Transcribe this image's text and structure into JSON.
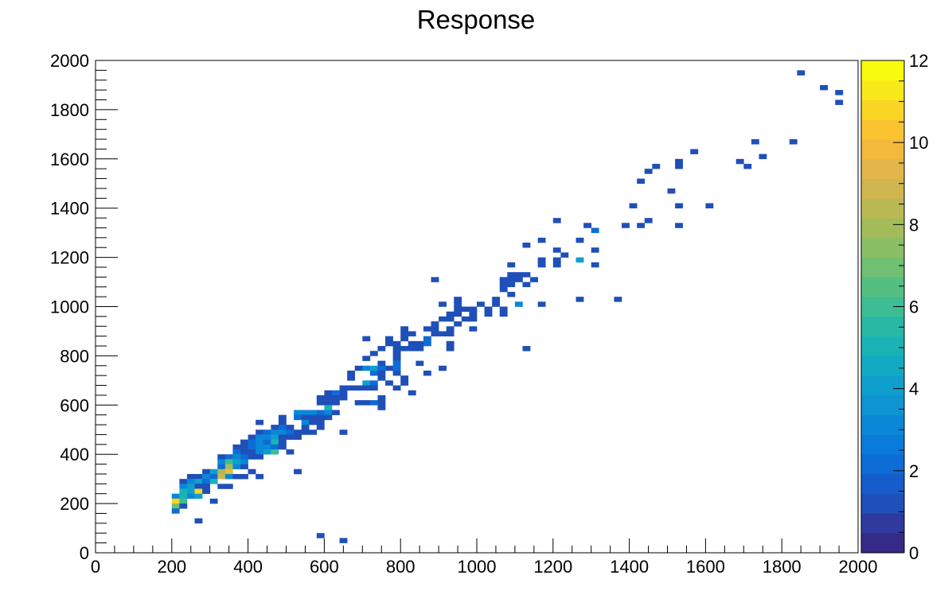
{
  "chart_data": {
    "type": "heatmap",
    "title": "Response",
    "xlabel": "",
    "ylabel": "",
    "xlim": [
      0,
      2000
    ],
    "ylim": [
      0,
      2000
    ],
    "zlim": [
      0,
      12
    ],
    "bin_width": 20,
    "x_ticks": [
      0,
      200,
      400,
      600,
      800,
      1000,
      1200,
      1400,
      1600,
      1800,
      2000
    ],
    "y_ticks": [
      0,
      200,
      400,
      600,
      800,
      1000,
      1200,
      1400,
      1600,
      1800,
      2000
    ],
    "z_ticks": [
      0,
      2,
      4,
      6,
      8,
      10,
      12
    ],
    "x_tick_labels": [
      "0",
      "200",
      "400",
      "600",
      "800",
      "1000",
      "1200",
      "1400",
      "1600",
      "1800",
      "2000"
    ],
    "y_tick_labels": [
      "0",
      "200",
      "400",
      "600",
      "800",
      "1000",
      "1200",
      "1400",
      "1600",
      "1800",
      "2000"
    ],
    "z_tick_labels": [
      "0",
      "2",
      "4",
      "6",
      "8",
      "10",
      "12"
    ],
    "palette": [
      "#352a87",
      "#2e3a9e",
      "#1f4fb8",
      "#165ccb",
      "#0e6cd6",
      "#0a7bdb",
      "#0b87d8",
      "#0e93d3",
      "#0f9fcc",
      "#12aac2",
      "#1ab3b4",
      "#27b9a4",
      "#3dbd93",
      "#55bf82",
      "#70bf72",
      "#8abe64",
      "#a3bc59",
      "#bbb954",
      "#cfb650",
      "#e2b649",
      "#f2b93d",
      "#fbc330",
      "#fad624",
      "#f8e91a",
      "#f9fb0e"
    ],
    "cells": [
      [
        1850,
        1950,
        1
      ],
      [
        1910,
        1890,
        1
      ],
      [
        1950,
        1870,
        1
      ],
      [
        1950,
        1830,
        1
      ],
      [
        1730,
        1670,
        1
      ],
      [
        1830,
        1670,
        1
      ],
      [
        1570,
        1630,
        1
      ],
      [
        1750,
        1610,
        1
      ],
      [
        1530,
        1590,
        1
      ],
      [
        1690,
        1590,
        1
      ],
      [
        1470,
        1570,
        1
      ],
      [
        1530,
        1570,
        1
      ],
      [
        1710,
        1570,
        1
      ],
      [
        1450,
        1550,
        1
      ],
      [
        1430,
        1510,
        1
      ],
      [
        1510,
        1470,
        1
      ],
      [
        1410,
        1410,
        1
      ],
      [
        1530,
        1410,
        1
      ],
      [
        1610,
        1410,
        1
      ],
      [
        1210,
        1350,
        1
      ],
      [
        1450,
        1350,
        1
      ],
      [
        1290,
        1330,
        1
      ],
      [
        1390,
        1330,
        1
      ],
      [
        1430,
        1330,
        1
      ],
      [
        1530,
        1330,
        1
      ],
      [
        1310,
        1310,
        2
      ],
      [
        1170,
        1270,
        1
      ],
      [
        1270,
        1270,
        1
      ],
      [
        1130,
        1250,
        1
      ],
      [
        1210,
        1230,
        1
      ],
      [
        1310,
        1230,
        1
      ],
      [
        1230,
        1210,
        1
      ],
      [
        1170,
        1190,
        1
      ],
      [
        1210,
        1190,
        1
      ],
      [
        1270,
        1190,
        4
      ],
      [
        1090,
        1170,
        1
      ],
      [
        1170,
        1170,
        1
      ],
      [
        1210,
        1170,
        1
      ],
      [
        1310,
        1170,
        1
      ],
      [
        1090,
        1130,
        1
      ],
      [
        1110,
        1130,
        1
      ],
      [
        1130,
        1130,
        1
      ],
      [
        890,
        1110,
        1
      ],
      [
        1070,
        1110,
        1
      ],
      [
        1090,
        1110,
        1
      ],
      [
        1110,
        1110,
        1
      ],
      [
        1150,
        1110,
        1
      ],
      [
        1070,
        1090,
        1
      ],
      [
        1090,
        1090,
        1
      ],
      [
        1130,
        1090,
        1
      ],
      [
        1070,
        1070,
        1
      ],
      [
        1090,
        1050,
        1
      ],
      [
        950,
        1030,
        1
      ],
      [
        1050,
        1030,
        1
      ],
      [
        1270,
        1030,
        1
      ],
      [
        1370,
        1030,
        1
      ],
      [
        910,
        1010,
        1
      ],
      [
        950,
        1010,
        1
      ],
      [
        1010,
        1010,
        1
      ],
      [
        1050,
        1010,
        1
      ],
      [
        1110,
        1010,
        3
      ],
      [
        1170,
        1010,
        1
      ],
      [
        950,
        990,
        1
      ],
      [
        970,
        990,
        1
      ],
      [
        990,
        990,
        1
      ],
      [
        1030,
        990,
        1
      ],
      [
        1070,
        990,
        1
      ],
      [
        930,
        970,
        1
      ],
      [
        950,
        970,
        1
      ],
      [
        990,
        970,
        1
      ],
      [
        1030,
        970,
        1
      ],
      [
        1070,
        970,
        1
      ],
      [
        910,
        950,
        1
      ],
      [
        930,
        950,
        1
      ],
      [
        970,
        950,
        1
      ],
      [
        990,
        950,
        1
      ],
      [
        890,
        930,
        1
      ],
      [
        950,
        930,
        1
      ],
      [
        810,
        910,
        1
      ],
      [
        870,
        910,
        1
      ],
      [
        890,
        910,
        1
      ],
      [
        930,
        910,
        1
      ],
      [
        990,
        910,
        1
      ],
      [
        810,
        890,
        1
      ],
      [
        830,
        890,
        1
      ],
      [
        890,
        890,
        1
      ],
      [
        910,
        890,
        1
      ],
      [
        930,
        890,
        1
      ],
      [
        710,
        870,
        1
      ],
      [
        770,
        870,
        1
      ],
      [
        810,
        870,
        1
      ],
      [
        870,
        870,
        2
      ],
      [
        770,
        850,
        1
      ],
      [
        790,
        850,
        1
      ],
      [
        830,
        850,
        1
      ],
      [
        850,
        850,
        1
      ],
      [
        870,
        850,
        2
      ],
      [
        930,
        850,
        1
      ],
      [
        750,
        830,
        1
      ],
      [
        790,
        830,
        1
      ],
      [
        810,
        830,
        1
      ],
      [
        830,
        830,
        1
      ],
      [
        850,
        830,
        1
      ],
      [
        930,
        830,
        1
      ],
      [
        1130,
        830,
        1
      ],
      [
        730,
        810,
        1
      ],
      [
        790,
        810,
        1
      ],
      [
        710,
        790,
        1
      ],
      [
        790,
        790,
        1
      ],
      [
        750,
        770,
        1
      ],
      [
        790,
        770,
        2
      ],
      [
        850,
        770,
        1
      ],
      [
        690,
        750,
        1
      ],
      [
        710,
        750,
        3
      ],
      [
        730,
        750,
        4
      ],
      [
        750,
        750,
        2
      ],
      [
        770,
        750,
        1
      ],
      [
        790,
        750,
        2
      ],
      [
        910,
        750,
        1
      ],
      [
        670,
        730,
        1
      ],
      [
        730,
        730,
        2
      ],
      [
        750,
        730,
        1
      ],
      [
        790,
        730,
        1
      ],
      [
        870,
        730,
        1
      ],
      [
        670,
        710,
        1
      ],
      [
        750,
        710,
        1
      ],
      [
        810,
        710,
        1
      ],
      [
        710,
        690,
        4
      ],
      [
        730,
        690,
        2
      ],
      [
        770,
        690,
        1
      ],
      [
        810,
        690,
        1
      ],
      [
        650,
        670,
        1
      ],
      [
        670,
        670,
        1
      ],
      [
        690,
        670,
        1
      ],
      [
        710,
        670,
        1
      ],
      [
        730,
        670,
        1
      ],
      [
        790,
        670,
        1
      ],
      [
        610,
        650,
        1
      ],
      [
        630,
        650,
        2
      ],
      [
        650,
        650,
        1
      ],
      [
        830,
        650,
        1
      ],
      [
        590,
        630,
        1
      ],
      [
        610,
        630,
        1
      ],
      [
        630,
        630,
        1
      ],
      [
        650,
        630,
        1
      ],
      [
        750,
        630,
        1
      ],
      [
        590,
        610,
        1
      ],
      [
        610,
        610,
        1
      ],
      [
        630,
        610,
        1
      ],
      [
        690,
        610,
        1
      ],
      [
        710,
        610,
        1
      ],
      [
        730,
        610,
        2
      ],
      [
        750,
        610,
        1
      ],
      [
        610,
        590,
        5
      ],
      [
        750,
        590,
        1
      ],
      [
        530,
        570,
        3
      ],
      [
        550,
        570,
        3
      ],
      [
        570,
        570,
        3
      ],
      [
        590,
        570,
        2
      ],
      [
        610,
        570,
        3
      ],
      [
        630,
        570,
        1
      ],
      [
        490,
        550,
        1
      ],
      [
        530,
        550,
        2
      ],
      [
        550,
        550,
        1
      ],
      [
        570,
        550,
        1
      ],
      [
        590,
        550,
        1
      ],
      [
        610,
        550,
        1
      ],
      [
        430,
        530,
        1
      ],
      [
        490,
        530,
        1
      ],
      [
        550,
        530,
        3
      ],
      [
        570,
        530,
        1
      ],
      [
        590,
        530,
        1
      ],
      [
        470,
        510,
        1
      ],
      [
        490,
        510,
        2
      ],
      [
        510,
        510,
        1
      ],
      [
        550,
        510,
        1
      ],
      [
        590,
        510,
        1
      ],
      [
        430,
        490,
        1
      ],
      [
        450,
        490,
        2
      ],
      [
        470,
        490,
        3
      ],
      [
        490,
        490,
        3
      ],
      [
        510,
        490,
        2
      ],
      [
        530,
        490,
        1
      ],
      [
        550,
        490,
        1
      ],
      [
        570,
        490,
        1
      ],
      [
        650,
        490,
        1
      ],
      [
        410,
        470,
        1
      ],
      [
        430,
        470,
        3
      ],
      [
        450,
        470,
        3
      ],
      [
        470,
        470,
        4
      ],
      [
        490,
        470,
        1
      ],
      [
        510,
        470,
        1
      ],
      [
        530,
        470,
        1
      ],
      [
        390,
        450,
        1
      ],
      [
        410,
        450,
        2
      ],
      [
        430,
        450,
        3
      ],
      [
        450,
        450,
        2
      ],
      [
        470,
        450,
        5
      ],
      [
        490,
        450,
        1
      ],
      [
        370,
        430,
        1
      ],
      [
        390,
        430,
        1
      ],
      [
        410,
        430,
        2
      ],
      [
        430,
        430,
        3
      ],
      [
        450,
        430,
        3
      ],
      [
        470,
        430,
        2
      ],
      [
        490,
        430,
        1
      ],
      [
        370,
        410,
        2
      ],
      [
        390,
        410,
        1
      ],
      [
        410,
        410,
        1
      ],
      [
        430,
        410,
        3
      ],
      [
        450,
        410,
        4
      ],
      [
        470,
        410,
        6
      ],
      [
        510,
        410,
        1
      ],
      [
        330,
        390,
        1
      ],
      [
        350,
        390,
        2
      ],
      [
        370,
        390,
        3
      ],
      [
        390,
        390,
        2
      ],
      [
        410,
        390,
        1
      ],
      [
        430,
        390,
        1
      ],
      [
        330,
        370,
        3
      ],
      [
        350,
        370,
        6
      ],
      [
        370,
        370,
        4
      ],
      [
        390,
        370,
        3
      ],
      [
        330,
        350,
        2
      ],
      [
        350,
        350,
        8
      ],
      [
        370,
        350,
        3
      ],
      [
        390,
        350,
        1
      ],
      [
        290,
        330,
        1
      ],
      [
        310,
        330,
        4
      ],
      [
        330,
        330,
        8
      ],
      [
        350,
        330,
        10
      ],
      [
        410,
        330,
        1
      ],
      [
        530,
        330,
        1
      ],
      [
        250,
        310,
        1
      ],
      [
        270,
        310,
        1
      ],
      [
        290,
        310,
        3
      ],
      [
        310,
        310,
        2
      ],
      [
        330,
        310,
        9
      ],
      [
        350,
        310,
        3
      ],
      [
        370,
        310,
        1
      ],
      [
        390,
        310,
        1
      ],
      [
        430,
        310,
        1
      ],
      [
        230,
        290,
        1
      ],
      [
        250,
        290,
        3
      ],
      [
        270,
        290,
        4
      ],
      [
        290,
        290,
        2
      ],
      [
        310,
        290,
        5
      ],
      [
        230,
        270,
        3
      ],
      [
        250,
        270,
        4
      ],
      [
        270,
        270,
        1
      ],
      [
        290,
        270,
        1
      ],
      [
        330,
        270,
        1
      ],
      [
        350,
        270,
        1
      ],
      [
        230,
        250,
        5
      ],
      [
        250,
        250,
        4
      ],
      [
        270,
        250,
        11
      ],
      [
        290,
        250,
        1
      ],
      [
        210,
        230,
        3
      ],
      [
        230,
        230,
        5
      ],
      [
        250,
        230,
        3
      ],
      [
        270,
        230,
        4
      ],
      [
        210,
        210,
        11
      ],
      [
        230,
        210,
        6
      ],
      [
        310,
        210,
        1
      ],
      [
        210,
        190,
        7
      ],
      [
        230,
        190,
        1
      ],
      [
        210,
        170,
        2
      ],
      [
        270,
        130,
        1
      ],
      [
        590,
        70,
        1
      ],
      [
        650,
        50,
        1
      ]
    ]
  }
}
